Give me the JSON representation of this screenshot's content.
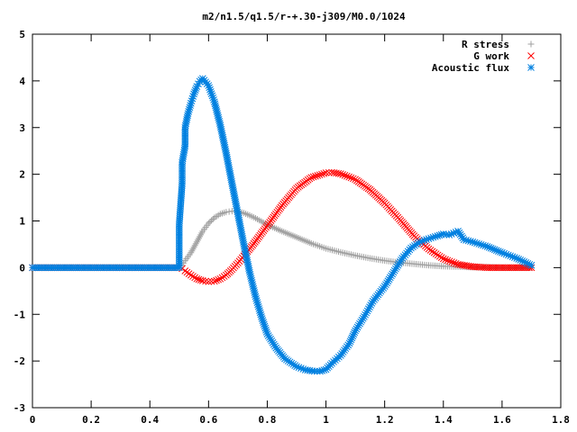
{
  "chart_data": {
    "type": "scatter",
    "title": "m2/n1.5/q1.5/r-+.30-j309/M0.0/1024",
    "xlim": [
      0,
      1.8
    ],
    "ylim": [
      -3,
      5
    ],
    "x_ticks": [
      "0",
      "0.2",
      "0.4",
      "0.6",
      "0.8",
      "1",
      "1.2",
      "1.4",
      "1.6",
      "1.8"
    ],
    "y_ticks": [
      "5",
      "4",
      "3",
      "2",
      "1",
      "0",
      "-1",
      "-2",
      "-3"
    ],
    "legend_position": "top-right",
    "grid": false,
    "series": [
      {
        "name": "R stress",
        "marker": "+",
        "color": "#a0a0a0",
        "x": [
          0.0,
          0.1,
          0.2,
          0.3,
          0.4,
          0.5,
          0.51,
          0.52,
          0.54,
          0.56,
          0.58,
          0.6,
          0.62,
          0.64,
          0.66,
          0.68,
          0.7,
          0.72,
          0.74,
          0.76,
          0.78,
          0.8,
          0.85,
          0.9,
          0.95,
          1.0,
          1.05,
          1.1,
          1.15,
          1.2,
          1.25,
          1.3,
          1.35,
          1.4,
          1.45,
          1.5,
          1.55,
          1.6,
          1.65,
          1.7
        ],
        "y": [
          0,
          0,
          0,
          0,
          0,
          0,
          0.05,
          0.15,
          0.32,
          0.55,
          0.78,
          0.95,
          1.07,
          1.15,
          1.19,
          1.21,
          1.2,
          1.17,
          1.12,
          1.06,
          0.99,
          0.92,
          0.78,
          0.65,
          0.52,
          0.41,
          0.33,
          0.26,
          0.2,
          0.15,
          0.11,
          0.08,
          0.05,
          0.03,
          0.02,
          0.01,
          0.01,
          0,
          0,
          0
        ]
      },
      {
        "name": "G work",
        "marker": "x",
        "color": "#ff0000",
        "x": [
          0.0,
          0.1,
          0.2,
          0.3,
          0.4,
          0.5,
          0.51,
          0.52,
          0.54,
          0.56,
          0.58,
          0.6,
          0.62,
          0.64,
          0.66,
          0.68,
          0.7,
          0.72,
          0.75,
          0.8,
          0.85,
          0.9,
          0.95,
          1.0,
          1.02,
          1.05,
          1.1,
          1.15,
          1.2,
          1.25,
          1.3,
          1.35,
          1.4,
          1.45,
          1.5,
          1.55,
          1.6,
          1.65,
          1.7
        ],
        "y": [
          0,
          0,
          0,
          0,
          0,
          0,
          -0.02,
          -0.07,
          -0.16,
          -0.24,
          -0.28,
          -0.3,
          -0.29,
          -0.24,
          -0.16,
          -0.04,
          0.1,
          0.25,
          0.48,
          0.9,
          1.33,
          1.7,
          1.93,
          2.03,
          2.04,
          2.01,
          1.89,
          1.67,
          1.38,
          1.04,
          0.68,
          0.4,
          0.19,
          0.07,
          0.02,
          0,
          0,
          0,
          0
        ]
      },
      {
        "name": "Acoustic flux",
        "marker": "*",
        "color": "#0080e0",
        "x": [
          0.0,
          0.1,
          0.2,
          0.3,
          0.4,
          0.5,
          0.5,
          0.51,
          0.51,
          0.52,
          0.52,
          0.53,
          0.54,
          0.55,
          0.56,
          0.57,
          0.58,
          0.6,
          0.62,
          0.64,
          0.66,
          0.68,
          0.7,
          0.72,
          0.74,
          0.76,
          0.78,
          0.8,
          0.83,
          0.86,
          0.9,
          0.93,
          0.96,
          0.98,
          1.0,
          1.02,
          1.05,
          1.08,
          1.1,
          1.13,
          1.16,
          1.2,
          1.23,
          1.26,
          1.29,
          1.32,
          1.35,
          1.38,
          1.4,
          1.42,
          1.45,
          1.47,
          1.5,
          1.55,
          1.6,
          1.65,
          1.7
        ],
        "y": [
          0,
          0,
          0,
          0,
          0,
          0,
          0.92,
          1.8,
          2.25,
          2.6,
          3.0,
          3.3,
          3.52,
          3.72,
          3.88,
          3.99,
          4.05,
          3.9,
          3.55,
          3.05,
          2.45,
          1.8,
          1.15,
          0.5,
          -0.1,
          -0.62,
          -1.05,
          -1.42,
          -1.72,
          -1.95,
          -2.12,
          -2.19,
          -2.22,
          -2.22,
          -2.18,
          -2.05,
          -1.88,
          -1.62,
          -1.35,
          -1.05,
          -0.72,
          -0.4,
          -0.1,
          0.2,
          0.42,
          0.55,
          0.62,
          0.68,
          0.72,
          0.7,
          0.78,
          0.6,
          0.55,
          0.45,
          0.32,
          0.2,
          0.05
        ]
      }
    ]
  }
}
